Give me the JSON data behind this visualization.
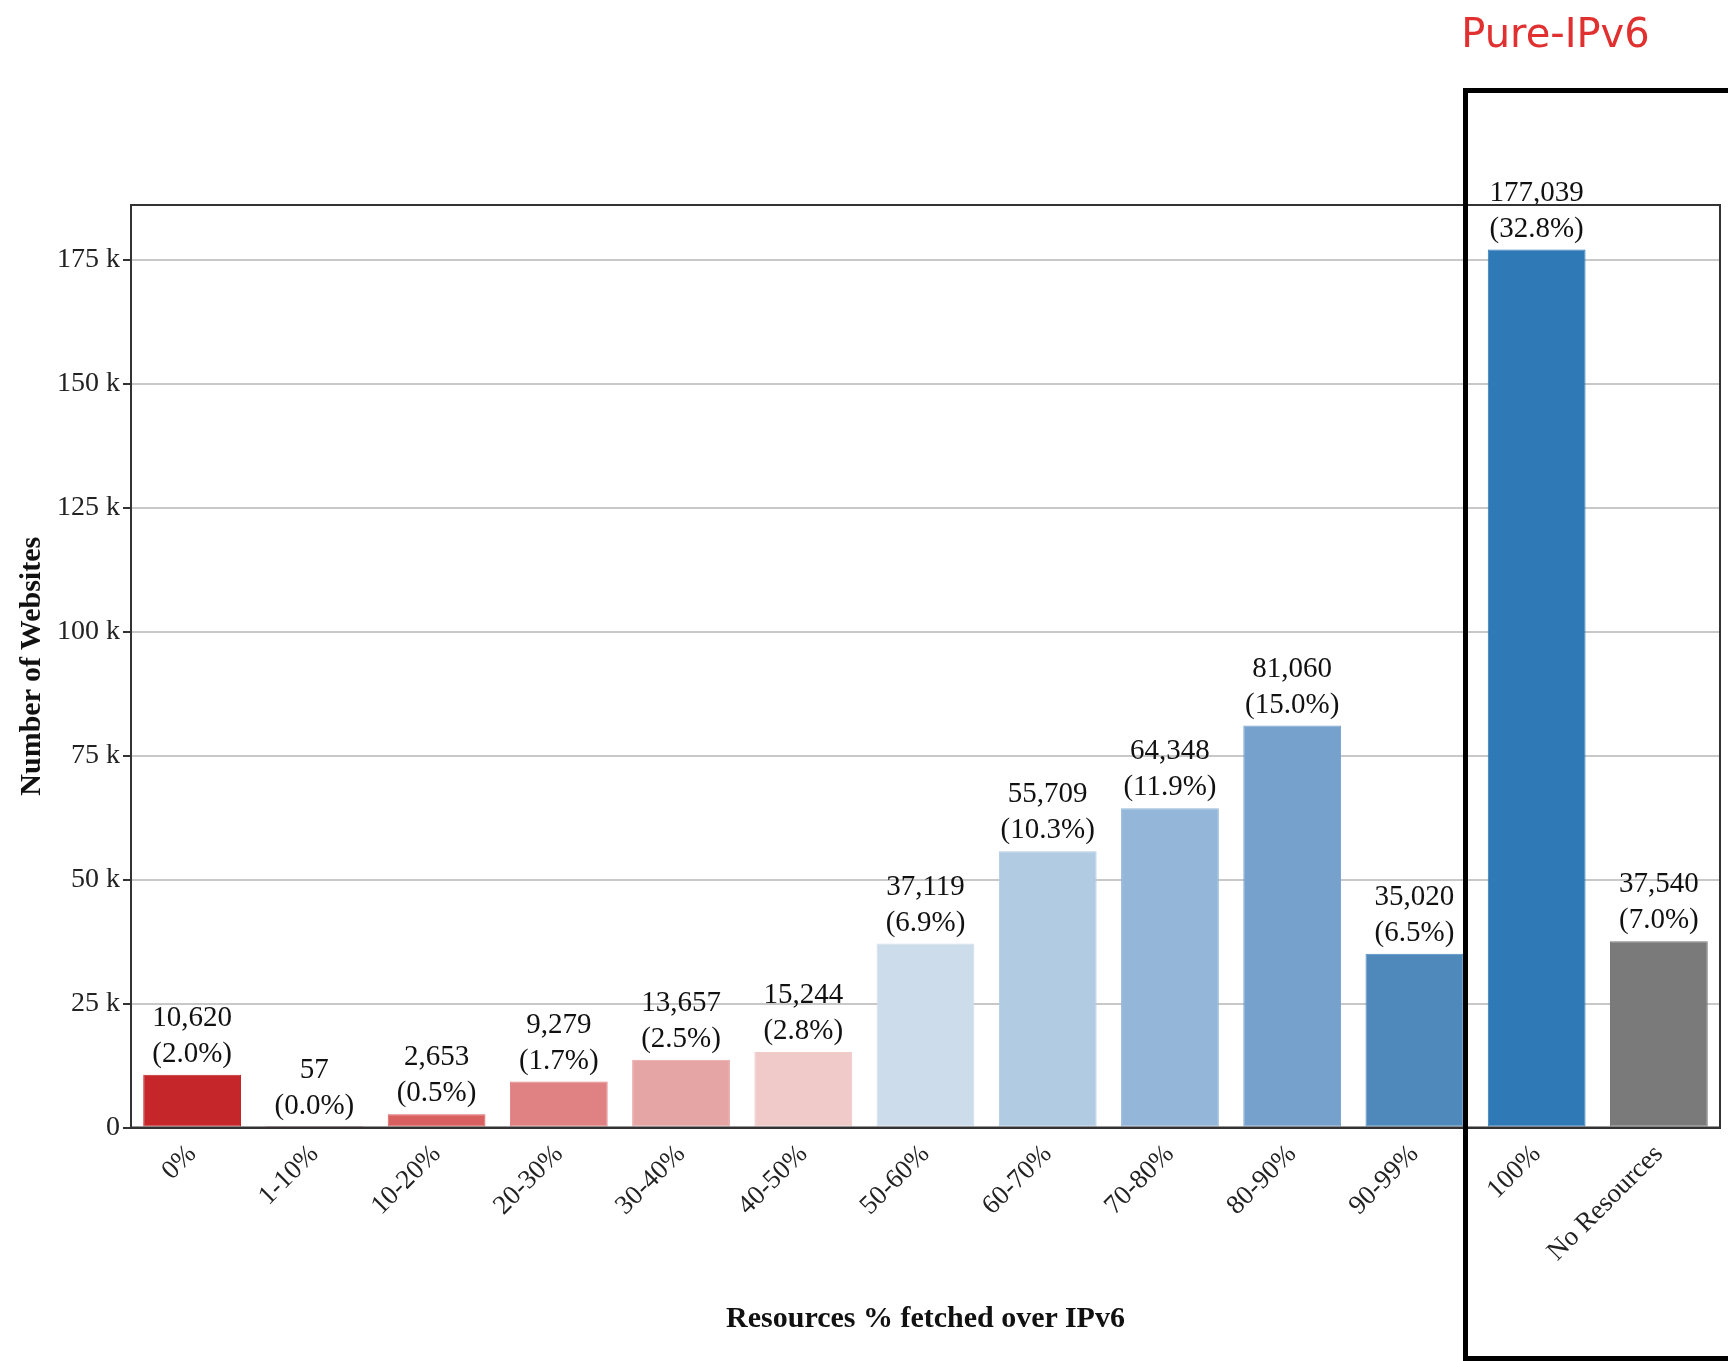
{
  "chart_data": {
    "type": "bar",
    "xlabel": "Resources % fetched over IPv6",
    "ylabel": "Number of Websites",
    "categories": [
      "0%",
      "1-10%",
      "10-20%",
      "20-30%",
      "30-40%",
      "40-50%",
      "50-60%",
      "60-70%",
      "70-80%",
      "80-90%",
      "90-99%",
      "100%",
      "No Resources"
    ],
    "values": [
      10620,
      57,
      2653,
      9279,
      13657,
      15244,
      37119,
      55709,
      64348,
      81060,
      35020,
      177039,
      37540
    ],
    "colors": [
      "#c4262a",
      "#d0474b",
      "#d96060",
      "#e08283",
      "#e6a5a5",
      "#f0c9c9",
      "#cddcea",
      "#b1cbe3",
      "#93b6d9",
      "#76a1cd",
      "#4f89bc",
      "#2f7ab6",
      "#7a7a7a"
    ],
    "value_labels": [
      "10,620\n(2.0%)",
      "57\n(0.0%)",
      "2,653\n(0.5%)",
      "9,279\n(1.7%)",
      "13,657\n(2.5%)",
      "15,244\n(2.8%)",
      "37,119\n(6.9%)",
      "55,709\n(10.3%)",
      "64,348\n(11.9%)",
      "81,060\n(15.0%)",
      "35,020\n(6.5%)",
      "177,039\n(32.8%)",
      "37,540\n(7.0%)"
    ],
    "ylim": [
      0,
      186000
    ],
    "yticks": [
      {
        "value": 0,
        "label": "0"
      },
      {
        "value": 25000,
        "label": "25 k"
      },
      {
        "value": 50000,
        "label": "50 k"
      },
      {
        "value": 75000,
        "label": "75 k"
      },
      {
        "value": 100000,
        "label": "100 k"
      },
      {
        "value": 125000,
        "label": "125 k"
      },
      {
        "value": 150000,
        "label": "150 k"
      },
      {
        "value": 175000,
        "label": "175 k"
      }
    ],
    "grid": "y",
    "annotations": [
      "Pure-IPv6"
    ]
  }
}
